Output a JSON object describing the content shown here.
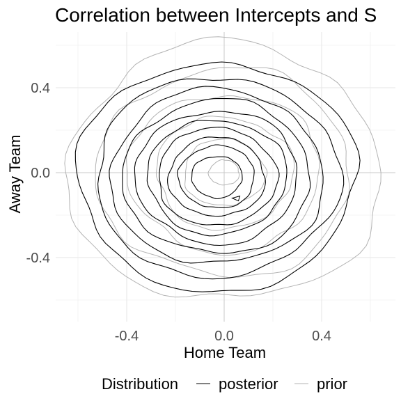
{
  "chart_data": {
    "type": "contour",
    "title": "Correlation between Intercepts and S",
    "xlabel": "Home Team",
    "ylabel": "Away Team",
    "xlim": [
      -0.6,
      0.7
    ],
    "ylim": [
      -0.6,
      0.6
    ],
    "x_ticks": [
      -0.4,
      0.0,
      0.4
    ],
    "x_tick_labels": [
      "-0.4",
      "0.0",
      "0.4"
    ],
    "y_ticks": [
      -0.4,
      0.0,
      0.4
    ],
    "y_tick_labels": [
      "-0.4",
      "0.0",
      "0.4"
    ],
    "grid": true,
    "legend": {
      "title": "Distribution",
      "position": "bottom",
      "entries": [
        "posterior",
        "prior"
      ]
    },
    "series": [
      {
        "name": "posterior",
        "color": "#000000",
        "center": [
          -0.03,
          -0.02
        ],
        "contour_radii": [
          0.55,
          0.48,
          0.42,
          0.37,
          0.32,
          0.275,
          0.235,
          0.19,
          0.15,
          0.1
        ]
      },
      {
        "name": "prior",
        "color": "#b3b3b3",
        "center": [
          0.0,
          0.0
        ],
        "contour_radii": [
          0.62,
          0.5,
          0.38,
          0.27,
          0.16,
          0.06
        ]
      }
    ],
    "annotations": [
      {
        "type": "small-contour",
        "series": "posterior",
        "x": 0.05,
        "y": -0.12
      }
    ]
  }
}
